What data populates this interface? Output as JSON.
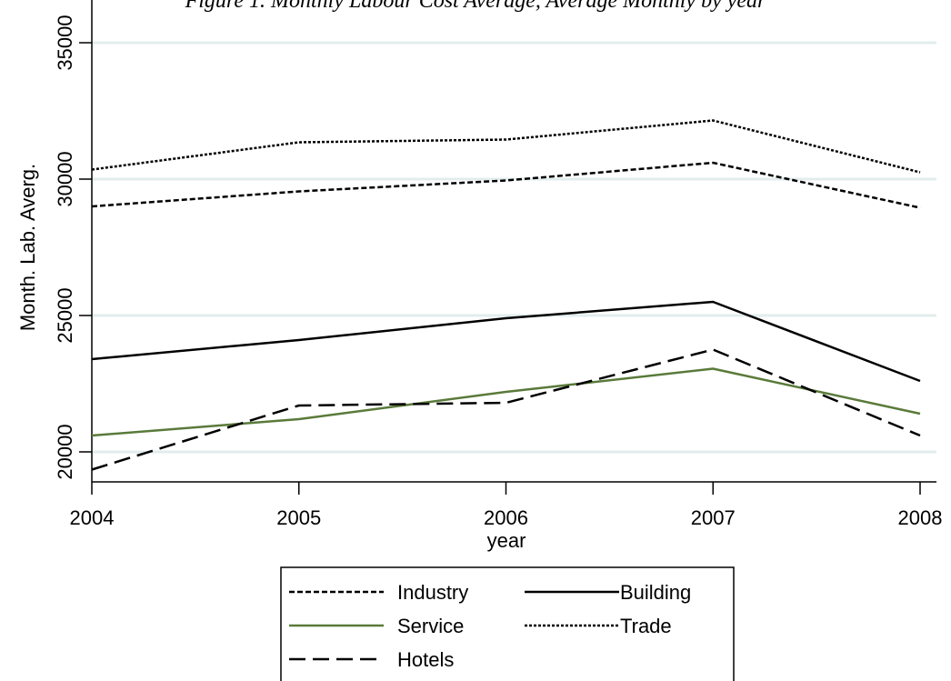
{
  "chart_data": {
    "type": "line",
    "title": "Figure 1. Monthly Labour Cost Average, Average Monthly by year",
    "xlabel": "year",
    "ylabel": "Month. Lab. Averg.",
    "x": [
      2004,
      2005,
      2006,
      2007,
      2008
    ],
    "x_tick_labels": [
      "2004",
      "2005",
      "2006",
      "2007",
      "2008"
    ],
    "y_ticks": [
      20000,
      25000,
      30000,
      35000
    ],
    "y_tick_labels": [
      "20000",
      "25000",
      "30000",
      "35000"
    ],
    "ylim": [
      19000,
      35000
    ],
    "xlim": [
      2004,
      2008
    ],
    "grid": true,
    "legend_position": "bottom",
    "series": [
      {
        "name": "Industry",
        "values": [
          29000,
          29550,
          29950,
          30600,
          28950
        ],
        "color": "#000000",
        "dash": "short-dash"
      },
      {
        "name": "Building",
        "values": [
          23400,
          24100,
          24900,
          25500,
          22600
        ],
        "color": "#000000",
        "dash": "solid"
      },
      {
        "name": "Service",
        "values": [
          20600,
          21200,
          22200,
          23050,
          21400
        ],
        "color": "#5a7a3a",
        "dash": "solid"
      },
      {
        "name": "Trade",
        "values": [
          30350,
          31350,
          31450,
          32150,
          30250
        ],
        "color": "#000000",
        "dash": "dotted"
      },
      {
        "name": "Hotels",
        "values": [
          19350,
          21700,
          21800,
          23750,
          20600
        ],
        "color": "#000000",
        "dash": "long-dash"
      }
    ]
  }
}
